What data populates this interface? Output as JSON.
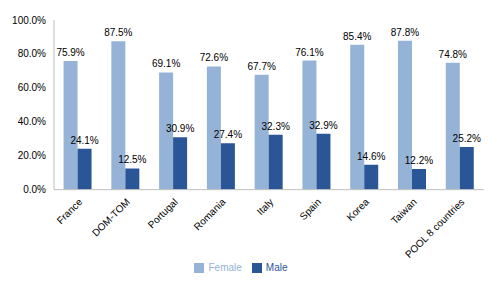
{
  "chart_data": {
    "type": "bar",
    "categories": [
      "France",
      "DOM-TOM",
      "Portugal",
      "Romania",
      "Italy",
      "Spain",
      "Korea",
      "Taiwan",
      "POOL 8 countries"
    ],
    "series": [
      {
        "name": "Female",
        "color": "#95b3d7",
        "values": [
          75.9,
          87.5,
          69.1,
          72.6,
          67.7,
          76.1,
          85.4,
          87.8,
          74.8
        ],
        "value_labels": [
          "75.9%",
          "87.5%",
          "69.1%",
          "72.6%",
          "67.7%",
          "76.1%",
          "85.4%",
          "87.8%",
          "74.8%"
        ]
      },
      {
        "name": "Male",
        "color": "#2a5597",
        "values": [
          24.1,
          12.5,
          30.9,
          27.4,
          32.3,
          32.9,
          14.6,
          12.2,
          25.2
        ],
        "value_labels": [
          "24.1%",
          "12.5%",
          "30.9%",
          "27.4%",
          "32.3%",
          "32.9%",
          "14.6%",
          "12.2%",
          "25.2%"
        ]
      }
    ],
    "ylim": [
      0,
      100
    ],
    "yticks": [
      {
        "value": 0,
        "label": "0.0%"
      },
      {
        "value": 20,
        "label": "20.0%"
      },
      {
        "value": 40,
        "label": "40.0%"
      },
      {
        "value": 60,
        "label": "60.0%"
      },
      {
        "value": 80,
        "label": "80.0%"
      },
      {
        "value": 100,
        "label": "100.0%"
      }
    ],
    "grid": false,
    "legend": "bottom",
    "data_labels": true
  }
}
